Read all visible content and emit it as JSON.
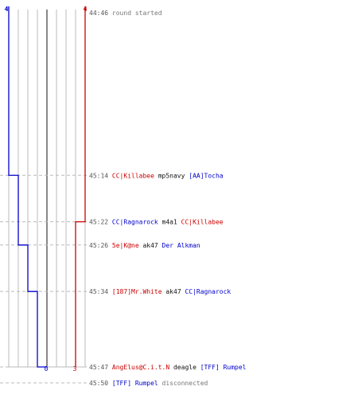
{
  "colors": {
    "team_a": "#0000cc",
    "team_b": "#cc0000",
    "time": "#555555",
    "neutral": "#111111",
    "status": "#777777",
    "grid": "#bbbbbb",
    "center": "#555555",
    "dash": "#bbbbbb"
  },
  "scores": {
    "team_a_start": "4",
    "team_b_start": "4",
    "team_a_end": "0",
    "team_b_end": "3"
  },
  "team_a_step_times": [
    "45:14",
    "45:26",
    "45:34",
    "45:47"
  ],
  "team_b_step_times": [
    "45:22"
  ],
  "events": [
    {
      "time": "44:46",
      "type": "status",
      "parts": [
        {
          "text": "round started",
          "team": "status"
        }
      ]
    },
    {
      "time": "45:14",
      "type": "kill",
      "parts": [
        {
          "text": "CC|Killabee",
          "team": "b"
        },
        {
          "text": " mp5navy ",
          "team": "neutral"
        },
        {
          "text": "[AA]Tocha",
          "team": "a"
        }
      ]
    },
    {
      "time": "45:22",
      "type": "kill",
      "parts": [
        {
          "text": "CC|Ragnarock",
          "team": "a"
        },
        {
          "text": " m4a1 ",
          "team": "neutral"
        },
        {
          "text": "CC|Killabee",
          "team": "b"
        }
      ]
    },
    {
      "time": "45:26",
      "type": "kill",
      "parts": [
        {
          "text": "5e|K@ne",
          "team": "b"
        },
        {
          "text": " ak47 ",
          "team": "neutral"
        },
        {
          "text": "Der Alkman",
          "team": "a"
        }
      ]
    },
    {
      "time": "45:34",
      "type": "kill",
      "parts": [
        {
          "text": "[187]Mr.White",
          "team": "b"
        },
        {
          "text": " ak47 ",
          "team": "neutral"
        },
        {
          "text": "CC|Ragnarock",
          "team": "a"
        }
      ]
    },
    {
      "time": "45:47",
      "type": "kill",
      "parts": [
        {
          "text": "AngElus@C.i.t.N",
          "team": "b"
        },
        {
          "text": " deagle ",
          "team": "neutral"
        },
        {
          "text": "[TFF] Rumpel",
          "team": "a"
        }
      ]
    },
    {
      "time": "45:50",
      "type": "status",
      "parts": [
        {
          "text": "[TFF] Rumpel",
          "team": "a"
        },
        {
          "text": " disconnected",
          "team": "status"
        }
      ]
    }
  ]
}
